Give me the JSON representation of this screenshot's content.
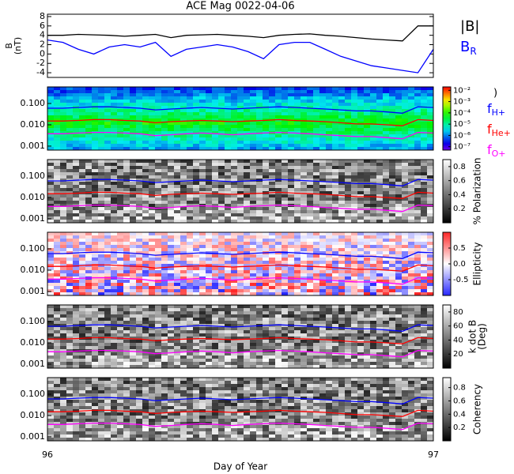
{
  "chart_data": [
    {
      "type": "line",
      "title": "ACE Mag 0022-04-06",
      "ylabel": [
        "B",
        "(nT)"
      ],
      "x": [
        96.0,
        96.04,
        96.08,
        96.12,
        96.16,
        96.2,
        96.24,
        96.28,
        96.32,
        96.36,
        96.4,
        96.44,
        96.48,
        96.52,
        96.56,
        96.6,
        96.64,
        96.68,
        96.72,
        96.76,
        96.8,
        96.84,
        96.88,
        96.92,
        96.96,
        97.0
      ],
      "ylim": [
        -5,
        8.5
      ],
      "yticks": [
        -4,
        -2,
        0,
        2,
        4,
        6,
        8
      ],
      "series": [
        {
          "name": "|B|",
          "color": "#000000",
          "values": [
            4,
            4,
            4.2,
            4.1,
            4,
            3.8,
            4,
            4.2,
            3.5,
            4,
            4.1,
            4.2,
            4,
            3.8,
            3.5,
            4,
            4.2,
            4.3,
            4,
            3.8,
            3.5,
            3.2,
            3,
            2.8,
            6,
            6
          ]
        },
        {
          "name": "B",
          "sub": "R",
          "color": "#0000ff",
          "values": [
            3,
            2.5,
            1,
            0,
            1.5,
            2,
            1.5,
            2.5,
            -0.5,
            1,
            1.5,
            2,
            1.5,
            0.5,
            -1,
            2,
            2.5,
            2.5,
            1,
            -0.5,
            -1.5,
            -2.5,
            -3,
            -3.5,
            -4,
            1
          ]
        }
      ]
    },
    {
      "type": "spectrogram",
      "colormap": "rainbow",
      "ylog": true,
      "ylim": [
        0.00065,
        0.6
      ],
      "yticks": [
        {
          "value": 0.001,
          "label": "0.001"
        },
        {
          "value": 0.01,
          "label": "0.010"
        },
        {
          "value": 0.1,
          "label": "0.100"
        }
      ],
      "clog": true,
      "clim": [
        5e-08,
        0.02
      ],
      "cticks": [
        {
          "value": 0.01,
          "label": "10⁻²"
        },
        {
          "value": 0.001,
          "label": "10⁻³"
        },
        {
          "value": 0.0001,
          "label": "10⁻⁴"
        },
        {
          "value": 1e-05,
          "label": "10⁻⁵"
        },
        {
          "value": 1e-06,
          "label": "10⁻⁶"
        },
        {
          "value": 1e-07,
          "label": "10⁻⁷"
        }
      ],
      "colorbar_label": [
        ")"
      ],
      "series": [
        {
          "name": "f",
          "sub": "H+",
          "color": "#0000ff",
          "values": [
            0.06,
            0.06,
            0.065,
            0.07,
            0.07,
            0.065,
            0.06,
            0.05,
            0.055,
            0.06,
            0.065,
            0.06,
            0.055,
            0.06,
            0.065,
            0.07,
            0.065,
            0.06,
            0.055,
            0.05,
            0.045,
            0.045,
            0.04,
            0.035,
            0.07,
            0.065
          ]
        },
        {
          "name": "f",
          "sub": "He+",
          "color": "#ff0000",
          "values": [
            0.015,
            0.015,
            0.016,
            0.0175,
            0.0175,
            0.016,
            0.015,
            0.0125,
            0.014,
            0.015,
            0.016,
            0.015,
            0.014,
            0.015,
            0.016,
            0.0175,
            0.016,
            0.015,
            0.014,
            0.0125,
            0.011,
            0.011,
            0.01,
            0.009,
            0.0175,
            0.016
          ]
        },
        {
          "name": "f",
          "sub": "O+",
          "color": "#ff00ff",
          "values": [
            0.0038,
            0.0038,
            0.0041,
            0.0044,
            0.0044,
            0.0041,
            0.0038,
            0.0031,
            0.0034,
            0.0038,
            0.0041,
            0.0038,
            0.0034,
            0.0038,
            0.0041,
            0.0044,
            0.0041,
            0.0038,
            0.0034,
            0.0031,
            0.0028,
            0.0028,
            0.0025,
            0.0022,
            0.0044,
            0.0041
          ]
        }
      ]
    },
    {
      "type": "spectrogram",
      "colormap": "gray",
      "ylog": true,
      "ylim": [
        0.00065,
        0.6
      ],
      "yticks": [
        {
          "value": 0.001,
          "label": "0.001"
        },
        {
          "value": 0.01,
          "label": "0.010"
        },
        {
          "value": 0.1,
          "label": "0.100"
        }
      ],
      "clim": [
        0,
        0.9
      ],
      "cticks": [
        0.2,
        0.4,
        0.6,
        0.8
      ],
      "colorbar_label": [
        "% Polarization"
      ]
    },
    {
      "type": "spectrogram",
      "colormap": "bwr",
      "ylog": true,
      "ylim": [
        0.00065,
        0.6
      ],
      "yticks": [
        {
          "value": 0.001,
          "label": "0.001"
        },
        {
          "value": 0.01,
          "label": "0.010"
        },
        {
          "value": 0.1,
          "label": "0.100"
        }
      ],
      "clim": [
        -1,
        1
      ],
      "cticks": [
        -0.5,
        {
          "value": 0,
          "label": "0.0"
        },
        0.5
      ],
      "colorbar_label": [
        "Ellipticity"
      ]
    },
    {
      "type": "spectrogram",
      "colormap": "gray",
      "ylog": true,
      "ylim": [
        0.00065,
        0.6
      ],
      "yticks": [
        {
          "value": 0.001,
          "label": "0.001"
        },
        {
          "value": 0.01,
          "label": "0.010"
        },
        {
          "value": 0.1,
          "label": "0.100"
        }
      ],
      "clim": [
        0,
        90
      ],
      "cticks": [
        20,
        40,
        60,
        80
      ],
      "colorbar_label": [
        "k dot B",
        "(Deg)"
      ]
    },
    {
      "type": "spectrogram",
      "colormap": "gray",
      "ylog": true,
      "ylim": [
        0.00065,
        0.6
      ],
      "yticks": [
        {
          "value": 0.001,
          "label": "0.001"
        },
        {
          "value": 0.01,
          "label": "0.010"
        },
        {
          "value": 0.1,
          "label": "0.100"
        }
      ],
      "clim": [
        0,
        0.95
      ],
      "cticks": [
        0.2,
        0.4,
        0.6,
        0.8
      ],
      "colorbar_label": [
        "Coherency"
      ],
      "xlim": [
        96,
        97
      ],
      "xticks": [
        96,
        97
      ],
      "xlabel": "Day of Year"
    }
  ]
}
